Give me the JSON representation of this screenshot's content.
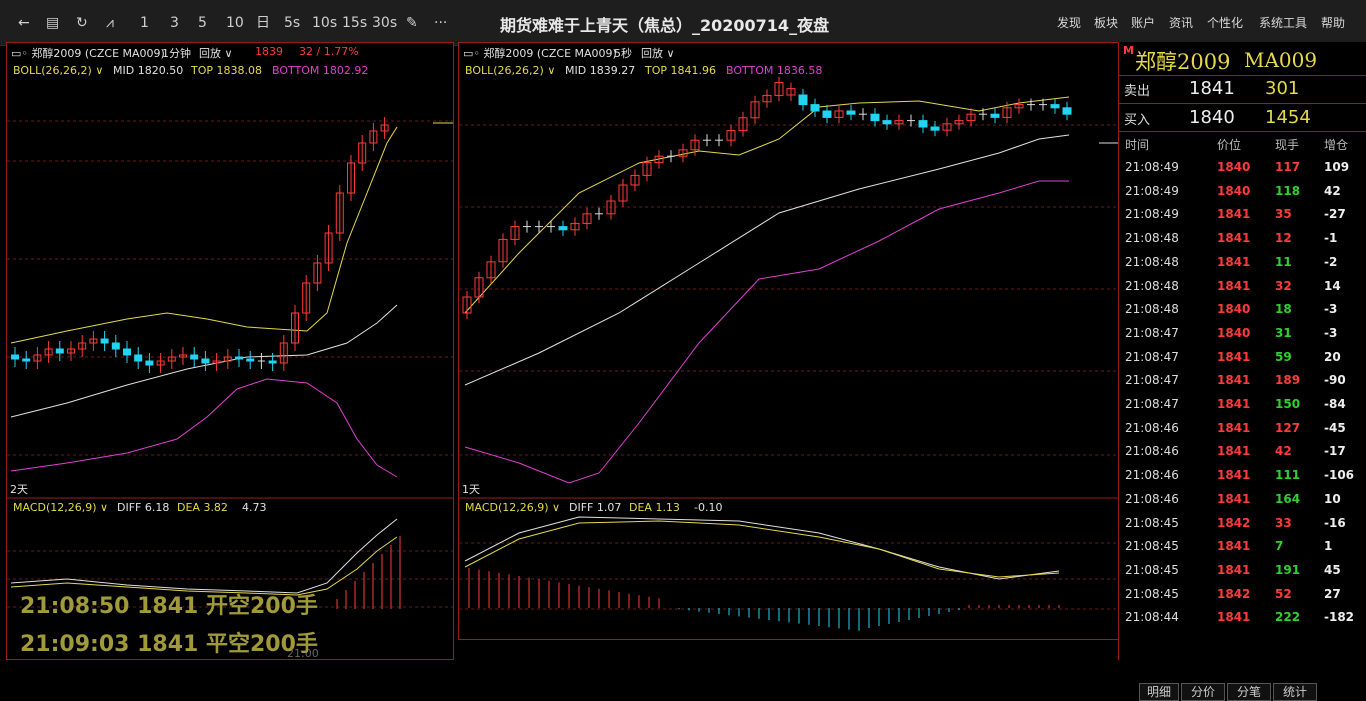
{
  "toolbar": {
    "items": [
      "←",
      "▤",
      "↻",
      "⩘",
      "1",
      "3",
      "5",
      "10",
      "日",
      "5s",
      "10s",
      "15s",
      "30s",
      "✎",
      "···"
    ]
  },
  "title": "期货难难于上青天（焦总）_20200714_夜盘",
  "menu": [
    "发现",
    "板块",
    "账户",
    "资讯",
    "个性化",
    "系统工具",
    "帮助"
  ],
  "left": {
    "symbol": "郑醇2009 (CZCE MA009)",
    "period": "1分钟",
    "replay": "回放",
    "price": "1839",
    "change": "32 / 1.77%",
    "boll": {
      "label": "BOLL(26,26,2)",
      "mid": "MID 1820.50",
      "top": "TOP 1838.08",
      "bottom": "BOTTOM 1802.92"
    },
    "day_marker": "2天",
    "macd": {
      "label": "MACD(12,26,9)",
      "diff": "DIFF 6.18",
      "dea": "DEA 3.82",
      "val": "4.73"
    },
    "time_label": "21:00"
  },
  "right": {
    "symbol": "郑醇2009 (CZCE MA009)",
    "period": "5秒",
    "replay": "回放",
    "boll": {
      "label": "BOLL(26,26,2)",
      "mid": "MID 1839.27",
      "top": "TOP 1841.96",
      "bottom": "BOTTOM 1836.58"
    },
    "day_marker": "1天",
    "macd": {
      "label": "MACD(12,26,9)",
      "diff": "DIFF 1.07",
      "dea": "DEA 1.13",
      "val": "-0.10"
    }
  },
  "quote": {
    "name": "郑醇2009",
    "code": "MA009",
    "m": "M",
    "sell_label": "卖出",
    "sell_price": "1841",
    "sell_vol": "301",
    "buy_label": "买入",
    "buy_price": "1840",
    "buy_vol": "1454",
    "headers": [
      "时间",
      "价位",
      "现手",
      "增仓"
    ],
    "rows": [
      [
        "21:08:49",
        "1840",
        "117",
        "109"
      ],
      [
        "21:08:49",
        "1840",
        "118",
        "42"
      ],
      [
        "21:08:49",
        "1841",
        "35",
        "-27"
      ],
      [
        "21:08:48",
        "1841",
        "12",
        "-1"
      ],
      [
        "21:08:48",
        "1841",
        "11",
        "-2"
      ],
      [
        "21:08:48",
        "1841",
        "32",
        "14"
      ],
      [
        "21:08:48",
        "1840",
        "18",
        "-3"
      ],
      [
        "21:08:47",
        "1840",
        "31",
        "-3"
      ],
      [
        "21:08:47",
        "1841",
        "59",
        "20"
      ],
      [
        "21:08:47",
        "1841",
        "189",
        "-90"
      ],
      [
        "21:08:47",
        "1841",
        "150",
        "-84"
      ],
      [
        "21:08:46",
        "1841",
        "127",
        "-45"
      ],
      [
        "21:08:46",
        "1841",
        "42",
        "-17"
      ],
      [
        "21:08:46",
        "1841",
        "111",
        "-106"
      ],
      [
        "21:08:46",
        "1841",
        "164",
        "10"
      ],
      [
        "21:08:45",
        "1842",
        "33",
        "-16"
      ],
      [
        "21:08:45",
        "1841",
        "7",
        "1"
      ],
      [
        "21:08:45",
        "1841",
        "191",
        "45"
      ],
      [
        "21:08:45",
        "1842",
        "52",
        "27"
      ],
      [
        "21:08:44",
        "1841",
        "222",
        "-182"
      ]
    ],
    "tabs": [
      "明细",
      "分价",
      "分笔",
      "统计"
    ]
  },
  "overlay": [
    "21:08:50 1841 开空200手",
    "21:09:03 1841 平空200手"
  ],
  "colors": {
    "up": "#ff3b3b",
    "down": "#21d4f2",
    "mid": "#e0e0e0",
    "top": "#e6d84a",
    "bottom": "#e040d0",
    "grid": "#6b1a1a"
  }
}
